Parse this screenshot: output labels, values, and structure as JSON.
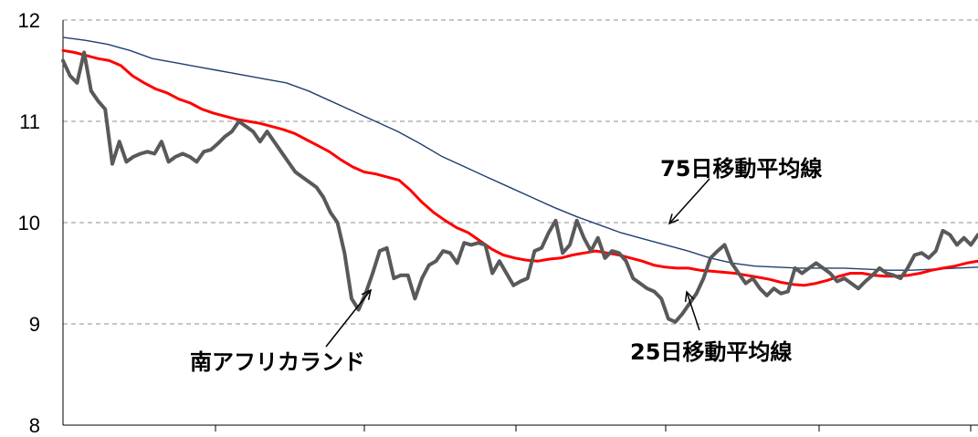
{
  "chart_data": {
    "type": "line",
    "title": "",
    "xlabel": "",
    "ylabel": "",
    "ylim": [
      8,
      12
    ],
    "yticks": [
      8,
      9,
      10,
      11,
      12
    ],
    "grid": "horizontal-dashed",
    "legend": "none",
    "annotations": [
      {
        "text": "75日移動平均線",
        "series": "75dma"
      },
      {
        "text": "25日移動平均線",
        "series": "25dma"
      },
      {
        "text": "南アフリカランド",
        "series": "zar"
      }
    ],
    "series": [
      {
        "id": "zar",
        "color": "#595959",
        "values": [
          11.6,
          11.45,
          11.38,
          11.68,
          11.3,
          11.2,
          11.12,
          10.58,
          10.8,
          10.6,
          10.65,
          10.68,
          10.7,
          10.68,
          10.8,
          10.6,
          10.65,
          10.68,
          10.65,
          10.6,
          10.7,
          10.72,
          10.78,
          10.85,
          10.9,
          11.0,
          10.95,
          10.9,
          10.8,
          10.9,
          10.8,
          10.7,
          10.6,
          10.5,
          10.45,
          10.4,
          10.35,
          10.25,
          10.1,
          10.0,
          9.7,
          9.25,
          9.14,
          9.3,
          9.5,
          9.72,
          9.75,
          9.45,
          9.48,
          9.48,
          9.25,
          9.45,
          9.58,
          9.62,
          9.72,
          9.7,
          9.6,
          9.8,
          9.78,
          9.8,
          9.78,
          9.5,
          9.62,
          9.5,
          9.38,
          9.42,
          9.45,
          9.72,
          9.75,
          9.9,
          10.02,
          9.7,
          9.78,
          10.02,
          9.85,
          9.72,
          9.85,
          9.65,
          9.72,
          9.7,
          9.62,
          9.45,
          9.4,
          9.35,
          9.32,
          9.25,
          9.05,
          9.02,
          9.1,
          9.2,
          9.3,
          9.45,
          9.65,
          9.72,
          9.78,
          9.6,
          9.5,
          9.4,
          9.45,
          9.35,
          9.28,
          9.35,
          9.3,
          9.32,
          9.55,
          9.5,
          9.55,
          9.6,
          9.55,
          9.5,
          9.42,
          9.45,
          9.4,
          9.35,
          9.42,
          9.48,
          9.55,
          9.5,
          9.48,
          9.45,
          9.55,
          9.68,
          9.7,
          9.65,
          9.72,
          9.92,
          9.88,
          9.78,
          9.85,
          9.78,
          9.88
        ]
      },
      {
        "id": "25dma",
        "color": "#ff0000",
        "values": [
          11.7,
          11.68,
          11.65,
          11.62,
          11.6,
          11.55,
          11.45,
          11.38,
          11.32,
          11.28,
          11.22,
          11.18,
          11.12,
          11.08,
          11.05,
          11.02,
          11.0,
          10.98,
          10.95,
          10.92,
          10.88,
          10.82,
          10.76,
          10.7,
          10.62,
          10.55,
          10.5,
          10.48,
          10.45,
          10.42,
          10.32,
          10.2,
          10.1,
          10.02,
          9.95,
          9.9,
          9.82,
          9.74,
          9.68,
          9.65,
          9.63,
          9.62,
          9.64,
          9.65,
          9.68,
          9.7,
          9.72,
          9.7,
          9.68,
          9.65,
          9.62,
          9.58,
          9.56,
          9.55,
          9.55,
          9.53,
          9.52,
          9.51,
          9.5,
          9.48,
          9.46,
          9.44,
          9.41,
          9.39,
          9.38,
          9.4,
          9.43,
          9.47,
          9.5,
          9.5,
          9.48,
          9.47,
          9.47,
          9.48,
          9.5,
          9.53,
          9.55,
          9.57,
          9.6,
          9.62
        ]
      },
      {
        "id": "75dma",
        "color": "#1f3f6f",
        "values": [
          11.83,
          11.8,
          11.76,
          11.7,
          11.62,
          11.58,
          11.54,
          11.5,
          11.46,
          11.42,
          11.38,
          11.3,
          11.2,
          11.1,
          11.0,
          10.9,
          10.78,
          10.65,
          10.55,
          10.45,
          10.35,
          10.25,
          10.15,
          10.06,
          9.98,
          9.9,
          9.84,
          9.78,
          9.72,
          9.65,
          9.6,
          9.57,
          9.56,
          9.55,
          9.55,
          9.55,
          9.54,
          9.53,
          9.53,
          9.54,
          9.55,
          9.56
        ]
      }
    ]
  }
}
